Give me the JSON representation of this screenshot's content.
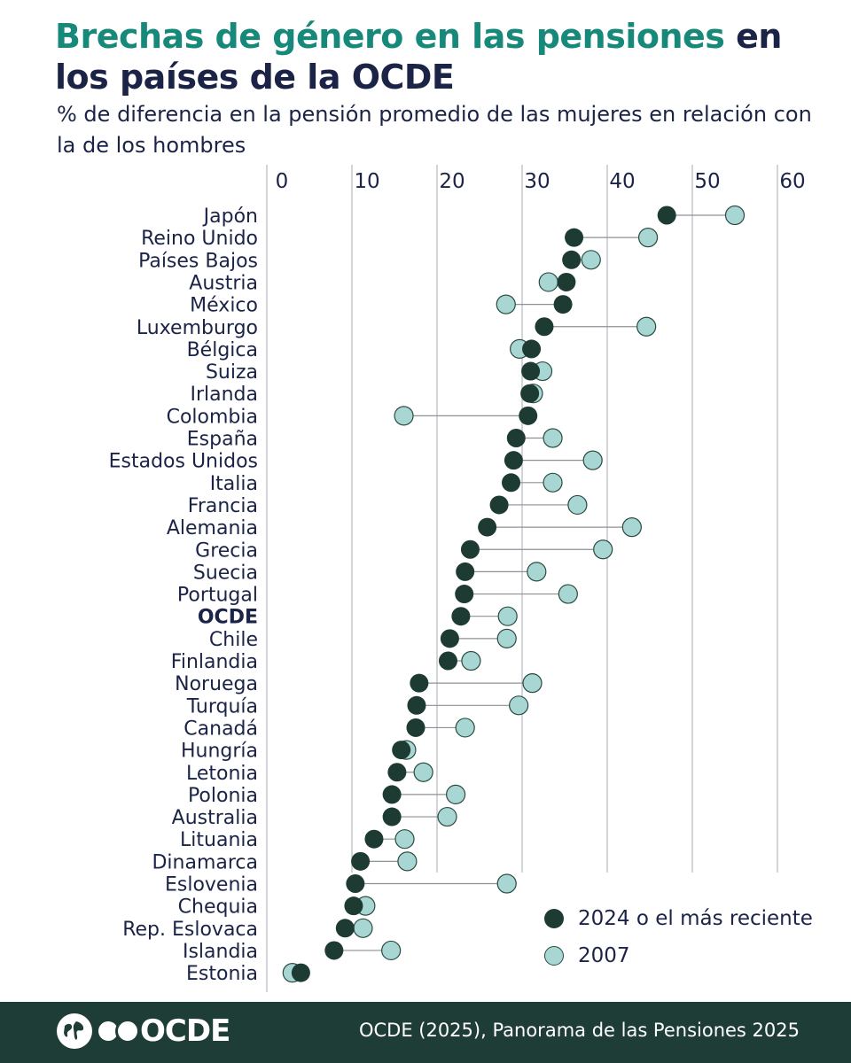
{
  "header": {
    "title_highlight": "Brechas de género en las pensiones",
    "title_rest": " en los países de la OCDE",
    "subtitle": "% de diferencia en la pensión promedio de las mujeres en relación con la de los hombres"
  },
  "chart_data": {
    "type": "dumbbell",
    "title": "Brechas de género en las pensiones en los países de la OCDE",
    "subtitle": "% de diferencia en la pensión promedio de las mujeres en relación con la de los hombres",
    "x_ticks": [
      0,
      10,
      20,
      30,
      40,
      50,
      60
    ],
    "xlim": [
      0,
      60
    ],
    "grid": true,
    "axis_position": "top",
    "legend_position": "bottom-right",
    "series": [
      {
        "name": "2024 o el más reciente",
        "color": "#1d3b32"
      },
      {
        "name": "2007",
        "color": "#a7d6d3"
      }
    ],
    "categories": [
      "Japón",
      "Reino Unido",
      "Países Bajos",
      "Austria",
      "México",
      "Luxemburgo",
      "Bélgica",
      "Suiza",
      "Irlanda",
      "Colombia",
      "España",
      "Estados Unidos",
      "Italia",
      "Francia",
      "Alemania",
      "Grecia",
      "Suecia",
      "Portugal",
      "OCDE",
      "Chile",
      "Finlandia",
      "Noruega",
      "Turquía",
      "Canadá",
      "Hungría",
      "Letonia",
      "Polonia",
      "Australia",
      "Lituania",
      "Dinamarca",
      "Eslovenia",
      "Chequia",
      "Rep. Eslovaca",
      "Islandia",
      "Estonia"
    ],
    "highlight": [
      "OCDE"
    ],
    "values_recent": [
      47.0,
      36.1,
      35.8,
      35.2,
      34.8,
      32.6,
      31.1,
      31.0,
      30.9,
      30.7,
      29.3,
      29.0,
      28.7,
      27.3,
      25.9,
      23.9,
      23.3,
      23.2,
      22.8,
      21.5,
      21.3,
      17.9,
      17.6,
      17.5,
      15.8,
      15.3,
      14.7,
      14.7,
      12.6,
      11.0,
      10.4,
      10.2,
      9.2,
      7.9,
      4.0
    ],
    "values_2007": [
      55.0,
      44.8,
      38.1,
      33.1,
      28.1,
      44.6,
      29.7,
      32.4,
      31.3,
      16.1,
      33.6,
      38.3,
      33.6,
      36.5,
      42.9,
      39.5,
      31.7,
      35.4,
      28.3,
      28.2,
      24.0,
      31.2,
      29.6,
      23.3,
      16.4,
      18.4,
      22.2,
      21.2,
      16.2,
      16.5,
      28.2,
      11.6,
      11.3,
      14.6,
      3.0
    ]
  },
  "legend": {
    "recent_label": "2024 o el más reciente",
    "old_label": "2007"
  },
  "footer": {
    "logo_text": "OCDE",
    "source": "OCDE (2025), Panorama de las Pensiones 2025"
  }
}
